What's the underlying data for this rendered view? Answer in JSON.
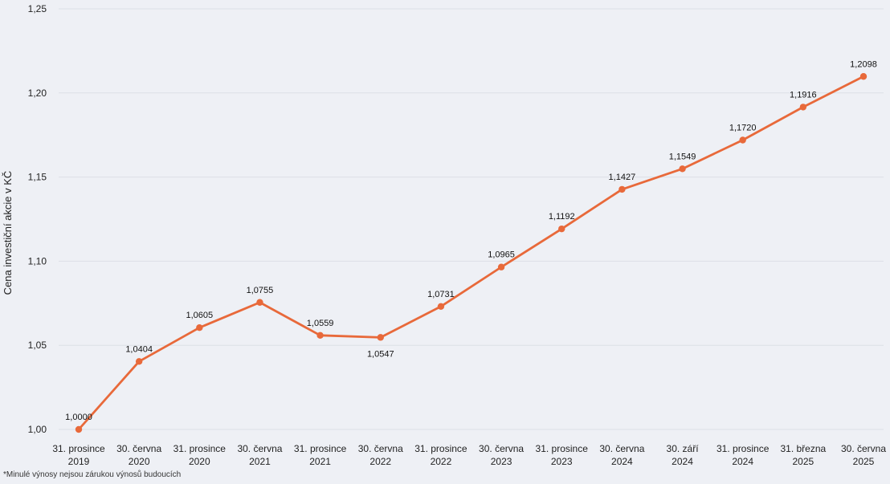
{
  "chart_data": {
    "type": "line",
    "ylabel": "Cena investiční akcie v KČ",
    "xlabel": "",
    "title": "",
    "ylim": [
      1.0,
      1.25
    ],
    "yticks": [
      "1,00",
      "1,05",
      "1,10",
      "1,15",
      "1,20",
      "1,25"
    ],
    "ytick_values": [
      1.0,
      1.05,
      1.1,
      1.15,
      1.2,
      1.25
    ],
    "grid": "horizontal",
    "categories": [
      [
        "31. prosince",
        "2019"
      ],
      [
        "30. června",
        "2020"
      ],
      [
        "31. prosince",
        "2020"
      ],
      [
        "30. června",
        "2021"
      ],
      [
        "31. prosince",
        "2021"
      ],
      [
        "30. června",
        "2022"
      ],
      [
        "31. prosince",
        "2022"
      ],
      [
        "30. června",
        "2023"
      ],
      [
        "31. prosince",
        "2023"
      ],
      [
        "30. června",
        "2024"
      ],
      [
        "30. září",
        "2024"
      ],
      [
        "31. prosince",
        "2024"
      ],
      [
        "31. března",
        "2025"
      ],
      [
        "30. června",
        "2025"
      ]
    ],
    "series": [
      {
        "values": [
          1.0,
          1.0404,
          1.0605,
          1.0755,
          1.0559,
          1.0547,
          1.0731,
          1.0965,
          1.1192,
          1.1427,
          1.1549,
          1.172,
          1.1916,
          1.2098
        ],
        "data_labels": [
          "1,0000",
          "1,0404",
          "1,0605",
          "1,0755",
          "1,0559",
          "1,0547",
          "1,0731",
          "1,0965",
          "1,1192",
          "1,1427",
          "1,1549",
          "1,1720",
          "1,1916",
          "1,2098"
        ]
      }
    ],
    "colors": {
      "line": "#e8693a",
      "grid": "#dcdfe6",
      "background": "#eef0f5"
    }
  },
  "footnote": "*Minulé výnosy nejsou zárukou výnosů budoucích"
}
